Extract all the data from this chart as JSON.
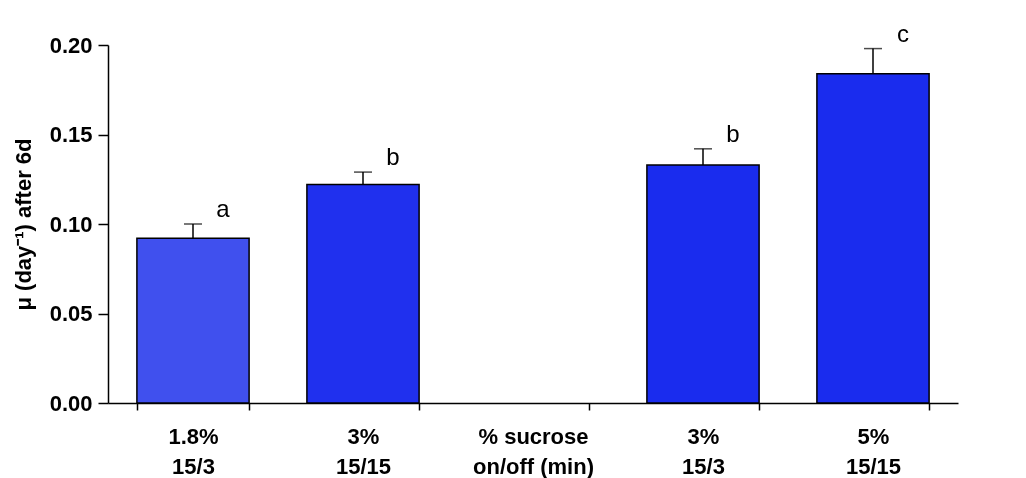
{
  "chart_data": {
    "type": "bar",
    "ylabel": "μ (day⁻¹) after 6d",
    "categories": [
      "1.8%\n15/3",
      "3%\n15/15",
      "% sucrose\non/off (min)",
      "3%\n15/3",
      "5%\n15/15"
    ],
    "values": [
      0.092,
      0.122,
      null,
      0.133,
      0.184
    ],
    "colors": [
      "#4050ee",
      "#2030ee",
      null,
      "#1a2cee",
      "#1a2cee"
    ],
    "errors": [
      [
        0.092,
        0.1
      ],
      [
        0.122,
        0.129
      ],
      null,
      [
        0.133,
        0.142
      ],
      [
        0.184,
        0.198
      ]
    ],
    "ylim": [
      0,
      0.2
    ],
    "yticks": [
      {
        "value": 0,
        "label": "0.00"
      },
      {
        "value": 0.05,
        "label": "0.05"
      },
      {
        "value": 0.1,
        "label": "0.10"
      },
      {
        "value": 0.15,
        "label": "0.15"
      },
      {
        "value": 0.2,
        "label": "0.20"
      }
    ],
    "annotations": [
      {
        "text": "a",
        "x": "1.8%\n15/3",
        "y": 0.1
      },
      {
        "text": "b",
        "x": "3%\n15/15",
        "y": 0.129
      },
      {
        "text": "b",
        "x": "3%\n15/3",
        "y": 0.142
      },
      {
        "text": "c",
        "x": "5%\n15/15",
        "y": 0.198
      }
    ],
    "grid": false
  }
}
